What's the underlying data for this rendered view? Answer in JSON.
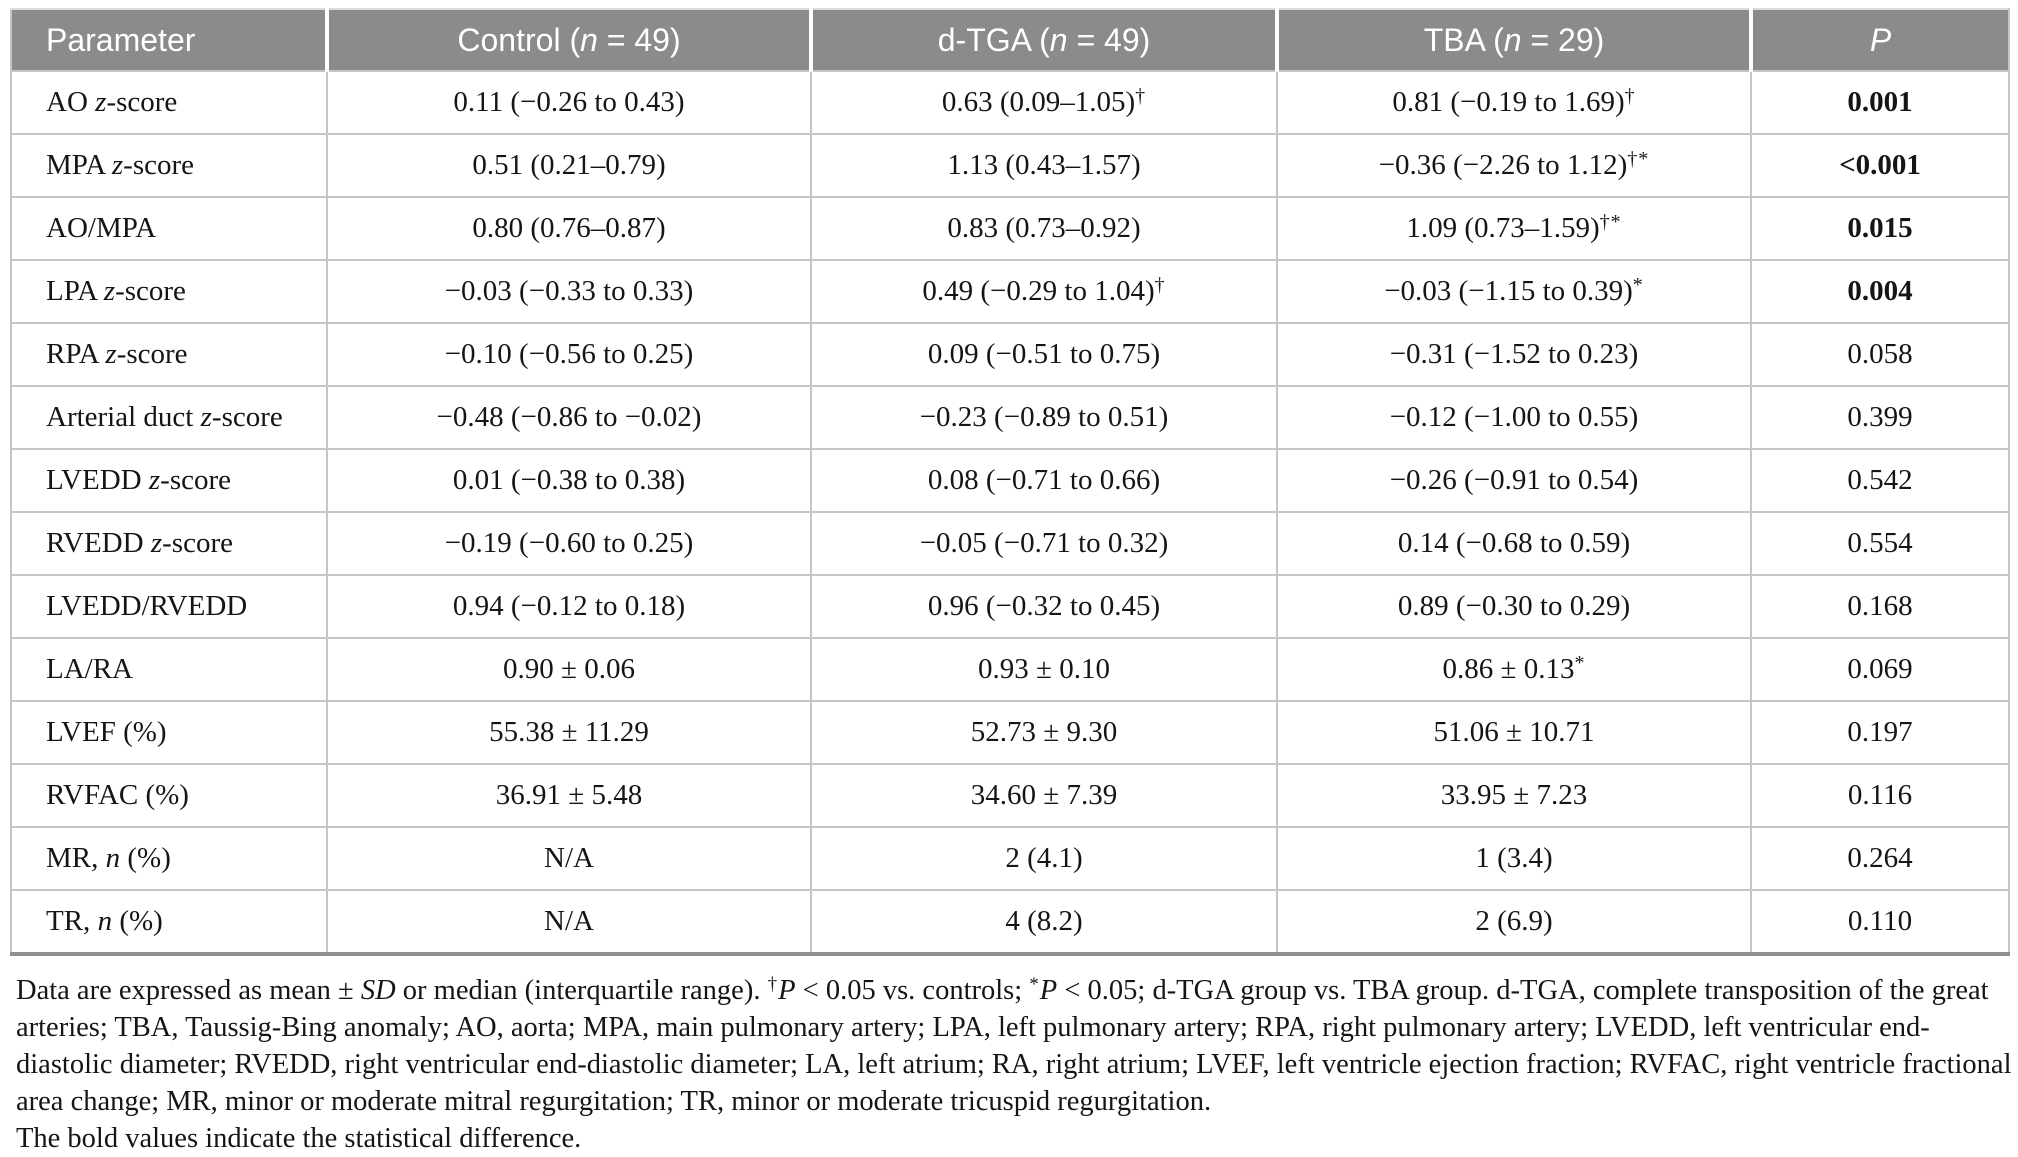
{
  "table": {
    "columns": [
      {
        "key": "parameter",
        "segments": [
          {
            "t": "Parameter"
          }
        ]
      },
      {
        "key": "control",
        "segments": [
          {
            "t": "Control ("
          },
          {
            "t": "n",
            "i": true
          },
          {
            "t": " = 49)"
          }
        ]
      },
      {
        "key": "dtga",
        "segments": [
          {
            "t": "d-TGA ("
          },
          {
            "t": "n",
            "i": true
          },
          {
            "t": " = 49)"
          }
        ]
      },
      {
        "key": "tba",
        "segments": [
          {
            "t": "TBA ("
          },
          {
            "t": "n",
            "i": true
          },
          {
            "t": " = 29)"
          }
        ]
      },
      {
        "key": "p",
        "segments": [
          {
            "t": "P",
            "i": true
          }
        ]
      }
    ],
    "rows": [
      {
        "label": [
          {
            "t": "AO "
          },
          {
            "t": "z",
            "i": true
          },
          {
            "t": "-score"
          }
        ],
        "control": {
          "t": "0.11 (−0.26 to 0.43)"
        },
        "dtga": {
          "t": "0.63 (0.09–1.05)",
          "sup": "†"
        },
        "tba": {
          "t": "0.81 (−0.19 to 1.69)",
          "sup": "†"
        },
        "p": {
          "t": "0.001",
          "bold": true
        }
      },
      {
        "label": [
          {
            "t": "MPA "
          },
          {
            "t": "z",
            "i": true
          },
          {
            "t": "-score"
          }
        ],
        "control": {
          "t": "0.51 (0.21–0.79)"
        },
        "dtga": {
          "t": "1.13 (0.43–1.57)"
        },
        "tba": {
          "t": "−0.36 (−2.26 to 1.12)",
          "sup": "†*"
        },
        "p": {
          "t": "<0.001",
          "bold": true
        }
      },
      {
        "label": [
          {
            "t": "AO/MPA"
          }
        ],
        "control": {
          "t": "0.80 (0.76–0.87)"
        },
        "dtga": {
          "t": "0.83 (0.73–0.92)"
        },
        "tba": {
          "t": "1.09 (0.73–1.59)",
          "sup": "†*"
        },
        "p": {
          "t": "0.015",
          "bold": true
        }
      },
      {
        "label": [
          {
            "t": "LPA "
          },
          {
            "t": "z",
            "i": true
          },
          {
            "t": "-score"
          }
        ],
        "control": {
          "t": "−0.03 (−0.33 to 0.33)"
        },
        "dtga": {
          "t": "0.49 (−0.29 to 1.04)",
          "sup": "†"
        },
        "tba": {
          "t": "−0.03 (−1.15 to 0.39)",
          "sup": "*"
        },
        "p": {
          "t": "0.004",
          "bold": true
        }
      },
      {
        "label": [
          {
            "t": "RPA "
          },
          {
            "t": "z",
            "i": true
          },
          {
            "t": "-score"
          }
        ],
        "control": {
          "t": "−0.10 (−0.56 to 0.25)"
        },
        "dtga": {
          "t": "0.09 (−0.51 to 0.75)"
        },
        "tba": {
          "t": "−0.31 (−1.52 to 0.23)"
        },
        "p": {
          "t": "0.058",
          "bold": false
        }
      },
      {
        "label": [
          {
            "t": "Arterial duct "
          },
          {
            "t": "z",
            "i": true
          },
          {
            "t": "-score"
          }
        ],
        "control": {
          "t": "−0.48 (−0.86 to −0.02)"
        },
        "dtga": {
          "t": "−0.23 (−0.89 to 0.51)"
        },
        "tba": {
          "t": "−0.12 (−1.00 to 0.55)"
        },
        "p": {
          "t": "0.399",
          "bold": false
        }
      },
      {
        "label": [
          {
            "t": "LVEDD "
          },
          {
            "t": "z",
            "i": true
          },
          {
            "t": "-score"
          }
        ],
        "control": {
          "t": "0.01 (−0.38 to 0.38)"
        },
        "dtga": {
          "t": "0.08 (−0.71 to 0.66)"
        },
        "tba": {
          "t": "−0.26 (−0.91 to 0.54)"
        },
        "p": {
          "t": "0.542",
          "bold": false
        }
      },
      {
        "label": [
          {
            "t": "RVEDD "
          },
          {
            "t": "z",
            "i": true
          },
          {
            "t": "-score"
          }
        ],
        "control": {
          "t": "−0.19 (−0.60 to 0.25)"
        },
        "dtga": {
          "t": "−0.05 (−0.71 to 0.32)"
        },
        "tba": {
          "t": "0.14 (−0.68 to 0.59)"
        },
        "p": {
          "t": "0.554",
          "bold": false
        }
      },
      {
        "label": [
          {
            "t": "LVEDD/RVEDD"
          }
        ],
        "control": {
          "t": "0.94 (−0.12 to 0.18)"
        },
        "dtga": {
          "t": "0.96 (−0.32 to 0.45)"
        },
        "tba": {
          "t": "0.89 (−0.30 to 0.29)"
        },
        "p": {
          "t": "0.168",
          "bold": false
        }
      },
      {
        "label": [
          {
            "t": "LA/RA"
          }
        ],
        "control": {
          "t": "0.90 ± 0.06"
        },
        "dtga": {
          "t": "0.93 ± 0.10"
        },
        "tba": {
          "t": "0.86 ± 0.13",
          "sup": "*"
        },
        "p": {
          "t": "0.069",
          "bold": false
        }
      },
      {
        "label": [
          {
            "t": "LVEF (%)"
          }
        ],
        "control": {
          "t": "55.38 ± 11.29"
        },
        "dtga": {
          "t": "52.73 ± 9.30"
        },
        "tba": {
          "t": "51.06 ± 10.71"
        },
        "p": {
          "t": "0.197",
          "bold": false
        }
      },
      {
        "label": [
          {
            "t": "RVFAC (%)"
          }
        ],
        "control": {
          "t": "36.91 ± 5.48"
        },
        "dtga": {
          "t": "34.60 ± 7.39"
        },
        "tba": {
          "t": "33.95 ± 7.23"
        },
        "p": {
          "t": "0.116",
          "bold": false
        }
      },
      {
        "label": [
          {
            "t": "MR, "
          },
          {
            "t": "n",
            "i": true
          },
          {
            "t": " (%)"
          }
        ],
        "control": {
          "t": "N/A"
        },
        "dtga": {
          "t": "2 (4.1)"
        },
        "tba": {
          "t": "1 (3.4)"
        },
        "p": {
          "t": "0.264",
          "bold": false
        }
      },
      {
        "label": [
          {
            "t": "TR, "
          },
          {
            "t": "n",
            "i": true
          },
          {
            "t": " (%)"
          }
        ],
        "control": {
          "t": "N/A"
        },
        "dtga": {
          "t": "4 (8.2)"
        },
        "tba": {
          "t": "2 (6.9)"
        },
        "p": {
          "t": "0.110",
          "bold": false
        }
      }
    ]
  },
  "footnote": {
    "paragraph": [
      {
        "t": "Data are expressed as mean ± "
      },
      {
        "t": "SD",
        "i": true
      },
      {
        "t": " or median (interquartile range). "
      },
      {
        "t": "†",
        "sup": true
      },
      {
        "t": "P",
        "i": true
      },
      {
        "t": " < 0.05 vs. controls; "
      },
      {
        "t": "*",
        "sup": true
      },
      {
        "t": "P",
        "i": true
      },
      {
        "t": " < 0.05; d-TGA group vs. TBA group. d-TGA, complete transposition of the great arteries; TBA, Taussig-Bing anomaly; AO, aorta; MPA, main pulmonary artery; LPA, left pulmonary artery; RPA, right pulmonary artery; LVEDD, left ventricular end-diastolic diameter; RVEDD, right ventricular end-diastolic diameter; LA, left atrium; RA, right atrium; LVEF, left ventricle ejection fraction; RVFAC, right ventricle fractional area change; MR, minor or moderate mitral regurgitation; TR, minor or moderate tricuspid regurgitation."
      }
    ],
    "bold_note": [
      {
        "t": "The bold values indicate the statistical difference."
      }
    ]
  },
  "colors": {
    "header_bg": "#8b8b8b",
    "header_text": "#ffffff",
    "grid_line": "#c6c6c6",
    "bottom_border": "#8f8f8f",
    "body_text": "#151515"
  }
}
